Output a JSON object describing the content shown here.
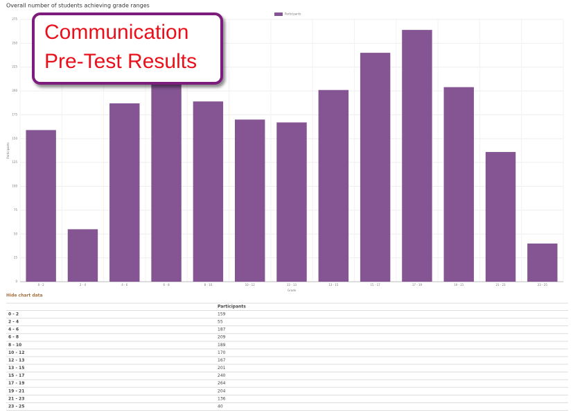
{
  "chart_data": {
    "type": "bar",
    "title": "Overall number of students achieving grade ranges",
    "legend": "Participants",
    "ylabel": "Participants",
    "xlabel": "Grade",
    "categories": [
      "0 - 2",
      "2 - 4",
      "4 - 6",
      "6 - 8",
      "8 - 10",
      "10 - 12",
      "12 - 13",
      "13 - 15",
      "15 - 17",
      "17 - 19",
      "19 - 21",
      "21 - 23",
      "23 - 25"
    ],
    "values": [
      159,
      55,
      187,
      209,
      189,
      170,
      167,
      201,
      240,
      264,
      204,
      136,
      40
    ],
    "color": "#845493",
    "ylim": [
      0,
      275
    ],
    "yticks": [
      0,
      25,
      50,
      75,
      100,
      125,
      150,
      175,
      200,
      225,
      250,
      275
    ],
    "grid": true
  },
  "toggle": "Hide chart data",
  "table": {
    "header": "Participants"
  },
  "callout": {
    "lines": [
      "Communication",
      "Pre-Test Results"
    ]
  }
}
